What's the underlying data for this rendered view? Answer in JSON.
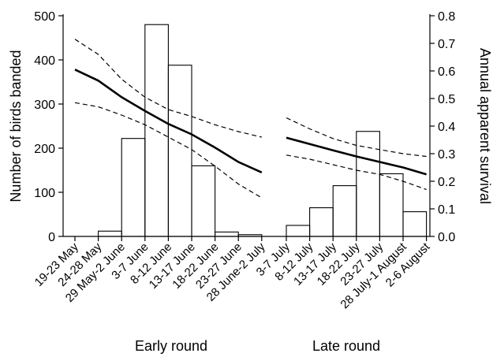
{
  "chart_data": {
    "type": "bar",
    "ylabel": "Number of birds banded",
    "y2label": "Annual apparent survival",
    "ylim": [
      0,
      500
    ],
    "y2lim": [
      0,
      0.8
    ],
    "yticks": [
      0,
      100,
      200,
      300,
      400,
      500
    ],
    "y2ticks": [
      0,
      0.1,
      0.2,
      0.3,
      0.4,
      0.5,
      0.6,
      0.7,
      0.8
    ],
    "y2tick_labels": [
      "0.0",
      "0.1",
      "0.2",
      "0.3",
      "0.4",
      "0.5",
      "0.6",
      "0.7",
      "0.8"
    ],
    "grid": false,
    "groups": [
      {
        "label": "Early round",
        "categories": [
          "19-23 May",
          "24-28 May",
          "29 May-2 June",
          "3-7 June",
          "8-12 June",
          "13-17 June",
          "18-22 June",
          "23-27 June",
          "28 June-2 July"
        ],
        "birds_banded": [
          null,
          12,
          222,
          480,
          388,
          160,
          10,
          4,
          null
        ],
        "survival": [
          0.605,
          0.565,
          0.505,
          0.455,
          0.408,
          0.37,
          0.322,
          0.27,
          0.232
        ],
        "survival_upper": [
          0.715,
          0.66,
          0.57,
          0.505,
          0.46,
          0.435,
          0.405,
          0.38,
          0.36
        ],
        "survival_lower": [
          0.485,
          0.47,
          0.44,
          0.405,
          0.36,
          0.315,
          0.255,
          0.19,
          0.14
        ]
      },
      {
        "label": "Late round",
        "categories": [
          "3-7 July",
          "8-12 July",
          "13-17 July",
          "18-22 July",
          "23-27 July",
          "28 July-1 August",
          "2-6 August"
        ],
        "birds_banded": [
          25,
          65,
          115,
          238,
          142,
          56,
          null
        ],
        "survival": [
          0.358,
          0.335,
          0.312,
          0.29,
          0.27,
          0.25,
          0.225
        ],
        "survival_upper": [
          0.43,
          0.39,
          0.355,
          0.33,
          0.315,
          0.3,
          0.29
        ],
        "survival_lower": [
          0.295,
          0.28,
          0.26,
          0.24,
          0.225,
          0.2,
          0.17
        ]
      }
    ]
  }
}
